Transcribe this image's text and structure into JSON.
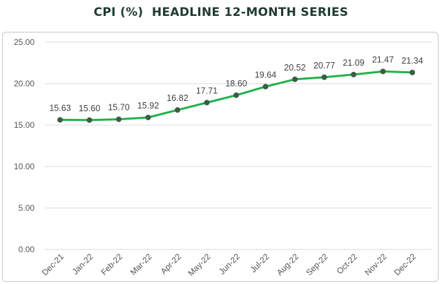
{
  "colors": {
    "line": "#21b14c",
    "marker": "#3b5d45",
    "grid": "#d9d9d9",
    "title": "#1f3a32"
  },
  "chart_data": {
    "type": "line",
    "title": "CPI (%)  HEADLINE 12-MONTH SERIES",
    "xlabel": "",
    "ylabel": "",
    "categories": [
      "Dec-21",
      "Jan-22",
      "Feb-22",
      "Mar-22",
      "Apr-22",
      "May-22",
      "Jun-22",
      "Jul-22",
      "Aug-22",
      "Sep-22",
      "Oct-22",
      "Nov-22",
      "Dec-22"
    ],
    "series": [
      {
        "values": [
          15.63,
          15.6,
          15.7,
          15.92,
          16.82,
          17.71,
          18.6,
          19.64,
          20.52,
          20.77,
          21.09,
          21.47,
          21.34
        ],
        "labels": [
          "15.63",
          "15.60",
          "15.70",
          "15.92",
          "16.82",
          "17.71",
          "18.60",
          "19.64",
          "20.52",
          "20.77",
          "21.09",
          "21.47",
          "21.34"
        ]
      }
    ],
    "ylim": [
      0,
      25
    ],
    "yticks": [
      "0.00",
      "5.00",
      "10.00",
      "15.00",
      "20.00",
      "25.00"
    ],
    "grid": true,
    "legend": "none"
  }
}
